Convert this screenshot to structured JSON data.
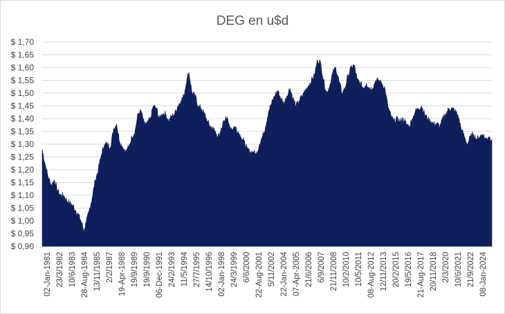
{
  "chart_data": {
    "type": "area",
    "title": "DEG en u$d",
    "xlabel": "",
    "ylabel": "",
    "ylim": [
      0.9,
      1.7
    ],
    "y_ticks": [
      "$ 0,90",
      "$ 0,95",
      "$ 1,00",
      "$ 1,05",
      "$ 1,10",
      "$ 1,15",
      "$ 1,20",
      "$ 1,25",
      "$ 1,30",
      "$ 1,35",
      "$ 1,40",
      "$ 1,45",
      "$ 1,50",
      "$ 1,55",
      "$ 1,60",
      "$ 1,65",
      "$ 1,70"
    ],
    "x_tick_labels": [
      "02-Jan-1981",
      "23/3/1982",
      "10/6/1983",
      "28-Aug-1984",
      "13/11/1985",
      "2/2/1987",
      "19-Apr-1988",
      "19/9/1989",
      "19/9/1990",
      "06-Dec-1991",
      "24/2/1993",
      "11/5/1994",
      "27/7/1995",
      "14/10/1996",
      "02-Jan-1998",
      "24/3/1999",
      "6/6/2000",
      "22-Aug-2001",
      "5/11/2002",
      "22-Jan-2004",
      "07-Apr-2005",
      "21/6/2006",
      "6/9/2007",
      "21/11/2008",
      "10/2/2010",
      "10/5/2011",
      "08-Aug-2012",
      "12/11/2013",
      "20/2/2015",
      "19/5/2016",
      "21-Aug-2017",
      "20/11/2018",
      "2/3/2020",
      "10/6/2021",
      "21/9/2022",
      "08-Jan-2024"
    ],
    "grid": true,
    "legend": "none",
    "fill_color": "#0f1f5c",
    "series": [
      {
        "x": [
          1981.0,
          1981.3,
          1981.6,
          1981.9,
          1982.2,
          1982.5,
          1982.8,
          1983.1,
          1983.4,
          1983.7,
          1984.0,
          1984.3,
          1984.6,
          1984.9,
          1985.1,
          1985.3,
          1985.6,
          1985.9,
          1986.2,
          1986.5,
          1986.8,
          1987.1,
          1987.4,
          1987.7,
          1988.0,
          1988.3,
          1988.6,
          1988.9,
          1989.2,
          1989.5,
          1989.8,
          1990.1,
          1990.4,
          1990.7,
          1991.0,
          1991.3,
          1991.6,
          1991.9,
          1992.2,
          1992.5,
          1992.8,
          1993.1,
          1993.4,
          1993.7,
          1994.0,
          1994.3,
          1994.6,
          1994.9,
          1995.2,
          1995.4,
          1995.7,
          1996.0,
          1996.3,
          1996.6,
          1996.9,
          1997.2,
          1997.5,
          1997.8,
          1998.1,
          1998.4,
          1998.7,
          1999.0,
          1999.3,
          1999.6,
          1999.9,
          2000.2,
          2000.5,
          2000.8,
          2001.1,
          2001.4,
          2001.7,
          2002.0,
          2002.3,
          2002.6,
          2002.9,
          2003.2,
          2003.5,
          2003.8,
          2004.1,
          2004.4,
          2004.7,
          2005.0,
          2005.3,
          2005.6,
          2005.9,
          2006.2,
          2006.5,
          2006.8,
          2007.1,
          2007.4,
          2007.7,
          2008.0,
          2008.3,
          2008.6,
          2008.9,
          2009.2,
          2009.5,
          2009.8,
          2010.1,
          2010.4,
          2010.7,
          2011.0,
          2011.3,
          2011.6,
          2011.9,
          2012.2,
          2012.5,
          2012.8,
          2013.1,
          2013.4,
          2013.7,
          2014.0,
          2014.3,
          2014.6,
          2014.9,
          2015.2,
          2015.5,
          2015.8,
          2016.1,
          2016.4,
          2016.7,
          2017.0,
          2017.3,
          2017.6,
          2017.9,
          2018.2,
          2018.5,
          2018.8,
          2019.1,
          2019.4,
          2019.7,
          2020.0,
          2020.3,
          2020.6,
          2020.9,
          2021.2,
          2021.5,
          2021.8,
          2022.1,
          2022.4,
          2022.7,
          2023.0,
          2023.3,
          2023.6,
          2023.9,
          2024.2,
          2024.5,
          2024.8,
          2025.1
        ],
        "values": [
          1.28,
          1.22,
          1.17,
          1.14,
          1.16,
          1.12,
          1.1,
          1.1,
          1.08,
          1.07,
          1.06,
          1.04,
          1.02,
          0.99,
          0.96,
          0.99,
          1.04,
          1.09,
          1.16,
          1.2,
          1.26,
          1.3,
          1.3,
          1.29,
          1.36,
          1.38,
          1.31,
          1.29,
          1.27,
          1.29,
          1.33,
          1.35,
          1.42,
          1.43,
          1.38,
          1.38,
          1.4,
          1.45,
          1.44,
          1.4,
          1.42,
          1.42,
          1.39,
          1.41,
          1.42,
          1.45,
          1.47,
          1.49,
          1.56,
          1.58,
          1.5,
          1.49,
          1.45,
          1.44,
          1.42,
          1.39,
          1.37,
          1.36,
          1.34,
          1.33,
          1.38,
          1.41,
          1.38,
          1.36,
          1.37,
          1.35,
          1.33,
          1.31,
          1.28,
          1.27,
          1.27,
          1.26,
          1.3,
          1.33,
          1.37,
          1.43,
          1.46,
          1.49,
          1.51,
          1.48,
          1.46,
          1.49,
          1.52,
          1.48,
          1.45,
          1.47,
          1.49,
          1.51,
          1.53,
          1.55,
          1.57,
          1.63,
          1.62,
          1.55,
          1.5,
          1.53,
          1.58,
          1.6,
          1.55,
          1.5,
          1.52,
          1.57,
          1.6,
          1.61,
          1.55,
          1.54,
          1.52,
          1.54,
          1.52,
          1.52,
          1.55,
          1.55,
          1.54,
          1.52,
          1.45,
          1.41,
          1.39,
          1.4,
          1.39,
          1.4,
          1.38,
          1.37,
          1.4,
          1.43,
          1.44,
          1.45,
          1.42,
          1.4,
          1.39,
          1.38,
          1.38,
          1.37,
          1.4,
          1.42,
          1.44,
          1.44,
          1.43,
          1.41,
          1.36,
          1.33,
          1.3,
          1.33,
          1.34,
          1.32,
          1.33,
          1.34,
          1.32,
          1.33,
          1.32
        ]
      }
    ]
  }
}
